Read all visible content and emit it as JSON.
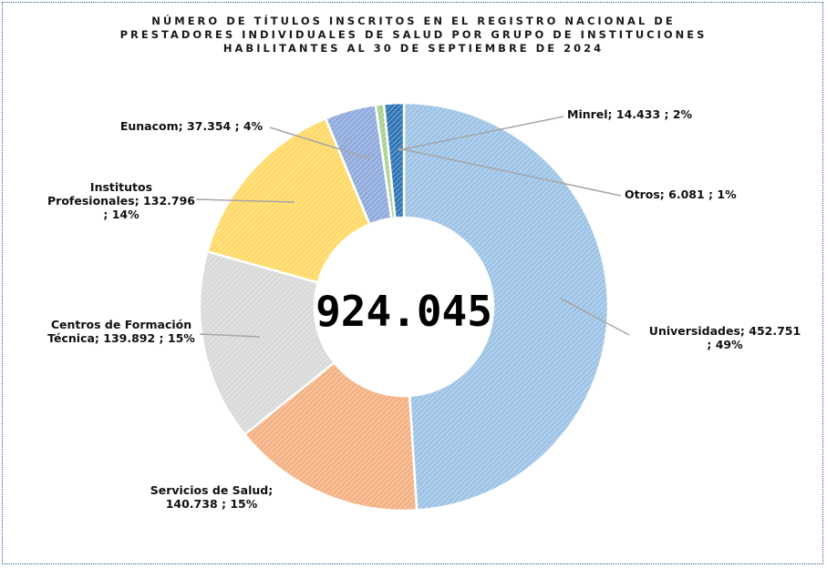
{
  "chart_data": {
    "type": "pie",
    "variant": "doughnut",
    "title_lines": [
      "NÚMERO DE TÍTULOS INSCRITOS EN EL REGISTRO NACIONAL DE",
      "PRESTADORES INDIVIDUALES DE SALUD POR GRUPO DE INSTITUCIONES",
      "HABILITANTES AL 30 DE SEPTIEMBRE DE 2024"
    ],
    "center_total": "924.045",
    "legend": "none",
    "slices": [
      {
        "name": "Universidades",
        "value": 452751,
        "value_label": "452.751",
        "percent_label": "49%",
        "color": "#9dc3e6",
        "label_lines": [
          "Universidades; 452.751",
          "; 49%"
        ]
      },
      {
        "name": "Servicios de Salud",
        "value": 140738,
        "value_label": "140.738",
        "percent_label": "15%",
        "color": "#f4b183",
        "label_lines": [
          "Servicios de Salud;",
          "140.738 ; 15%"
        ]
      },
      {
        "name": "Centros de Formación Técnica",
        "value": 139892,
        "value_label": "139.892",
        "percent_label": "15%",
        "color": "#d9d9d9",
        "label_lines": [
          "Centros de Formación",
          "Técnica; 139.892 ; 15%"
        ]
      },
      {
        "name": "Institutos Profesionales",
        "value": 132796,
        "value_label": "132.796",
        "percent_label": "14%",
        "color": "#ffd966",
        "label_lines": [
          "Institutos",
          "Profesionales; 132.796",
          "; 14%"
        ]
      },
      {
        "name": "Eunacom",
        "value": 37354,
        "value_label": "37.354",
        "percent_label": "4%",
        "color": "#8faadc",
        "label_lines": [
          "Eunacom; 37.354 ; 4%"
        ]
      },
      {
        "name": "Otros",
        "value": 6081,
        "value_label": "6.081",
        "percent_label": "1%",
        "color": "#a9d18e",
        "label_lines": [
          "Otros; 6.081 ; 1%"
        ]
      },
      {
        "name": "Minrel",
        "value": 14433,
        "value_label": "14.433",
        "percent_label": "2%",
        "color": "#2e75b6",
        "label_lines": [
          "Minrel; 14.433 ; 2%"
        ]
      }
    ]
  }
}
